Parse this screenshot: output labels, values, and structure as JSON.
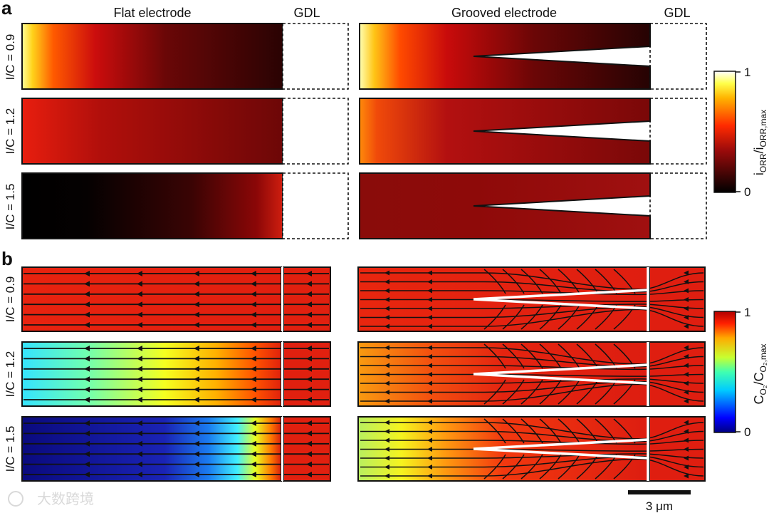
{
  "figure": {
    "panel_a": {
      "letter": "a",
      "flat_title": "Flat electrode",
      "grooved_title": "Grooved electrode",
      "gdl_label": "GDL",
      "rows": [
        {
          "label": "I/C = 0.9",
          "flat_peak": 1.0,
          "grooved_peak": 1.0
        },
        {
          "label": "I/C = 1.2",
          "flat_peak": 0.62,
          "grooved_peak": 0.78
        },
        {
          "label": "I/C = 1.5",
          "flat_peak": 0.55,
          "grooved_peak": 0.42
        }
      ],
      "colorbar": {
        "top": "1",
        "bottom": "0",
        "title_main": "i",
        "title_sub1": "ORR",
        "title_sep": "/i",
        "title_sub2": "ORR,max",
        "colormap": "hot"
      }
    },
    "panel_b": {
      "letter": "b",
      "rows": [
        {
          "label": "I/C = 0.9",
          "flat_left": 0.97,
          "flat_right": 0.97,
          "grooved_left": 0.96
        },
        {
          "label": "I/C = 1.2",
          "flat_left": 0.4,
          "flat_right": 0.97,
          "grooved_left": 0.85
        },
        {
          "label": "I/C = 1.5",
          "flat_left": 0.05,
          "flat_right": 0.97,
          "grooved_left": 0.65
        }
      ],
      "colorbar": {
        "top": "1",
        "bottom": "0",
        "title_main": "C",
        "title_sub1": "O₂",
        "title_sep": "/C",
        "title_sub2": "O₂,max",
        "colormap": "jet"
      }
    },
    "scale_bar": {
      "label": "3 μm"
    },
    "watermark": "大数跨境"
  }
}
